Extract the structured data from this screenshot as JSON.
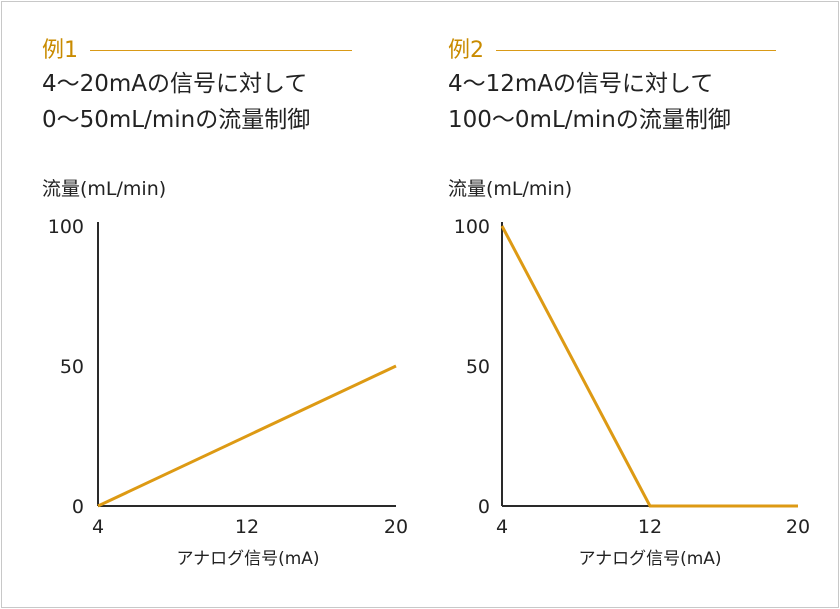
{
  "colors": {
    "line": "#dd9a14",
    "axis": "#2a2a2a",
    "label_accent": "#c98b00"
  },
  "examples": [
    {
      "label": "例1",
      "desc_line1": "4〜20mAの信号に対して",
      "desc_line2": "0〜50mL/minの流量制御"
    },
    {
      "label": "例2",
      "desc_line1": "4〜12mAの信号に対して",
      "desc_line2": "100〜0mL/minの流量制御"
    }
  ],
  "chart_data": [
    {
      "type": "line",
      "ylabel": "流量(mL/min)",
      "xlabel": "アナログ信号(mA)",
      "xlim": [
        4,
        20
      ],
      "ylim": [
        0,
        100
      ],
      "x_ticks": [
        "4",
        "12",
        "20"
      ],
      "y_ticks": [
        "0",
        "50",
        "100"
      ],
      "grid": false,
      "series": [
        {
          "x": [
            4,
            20
          ],
          "y": [
            0,
            50
          ]
        }
      ]
    },
    {
      "type": "line",
      "ylabel": "流量(mL/min)",
      "xlabel": "アナログ信号(mA)",
      "xlim": [
        4,
        20
      ],
      "ylim": [
        0,
        100
      ],
      "x_ticks": [
        "4",
        "12",
        "20"
      ],
      "y_ticks": [
        "0",
        "50",
        "100"
      ],
      "grid": false,
      "series": [
        {
          "x": [
            4,
            12,
            20
          ],
          "y": [
            100,
            0,
            0
          ]
        }
      ]
    }
  ]
}
